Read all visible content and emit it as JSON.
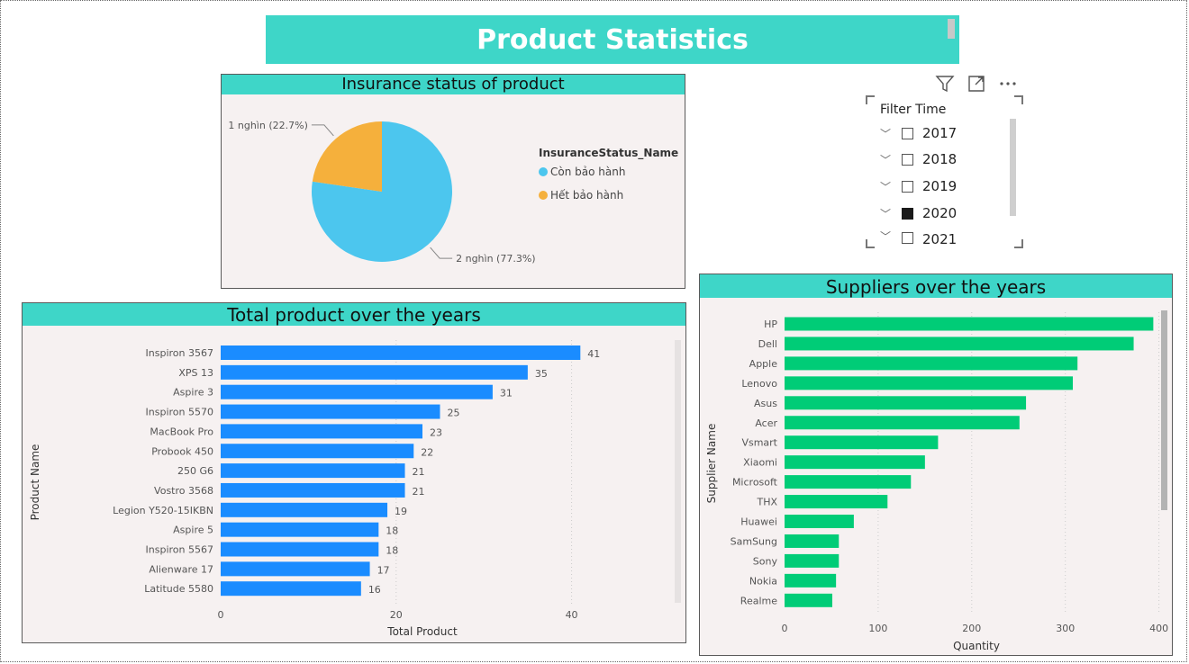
{
  "page": {
    "title": "Product Statistics"
  },
  "pie_panel": {
    "header": "Insurance status of product"
  },
  "slicer": {
    "title": "Filter Time",
    "items": [
      {
        "label": "2017",
        "checked": false
      },
      {
        "label": "2018",
        "checked": false
      },
      {
        "label": "2019",
        "checked": false
      },
      {
        "label": "2020",
        "checked": true
      },
      {
        "label": "2021",
        "checked": false
      }
    ]
  },
  "products_panel": {
    "header": "Total product over the years"
  },
  "suppliers_panel": {
    "header": "Suppliers over the years"
  },
  "colors": {
    "teal": "#3ed6c8",
    "pie_blue": "#4cc6ee",
    "pie_orange": "#f5b03c",
    "bar_blue": "#1a8cff",
    "bar_green": "#00cc77"
  },
  "chart_data": [
    {
      "type": "pie",
      "legend_title": "InsuranceStatus_Name",
      "legend_position": "right",
      "slices": [
        {
          "name": "Còn bảo hành",
          "percent": 77.3,
          "label": "2 nghìn (77.3%)",
          "color": "#4cc6ee"
        },
        {
          "name": "Hết bảo hành",
          "percent": 22.7,
          "label": "1 nghìn (22.7%)",
          "color": "#f5b03c"
        }
      ]
    },
    {
      "type": "bar",
      "orientation": "horizontal",
      "ylabel": "Product Name",
      "xlabel": "Total Product",
      "xlim": [
        0,
        46
      ],
      "xticks": [
        0,
        20,
        40
      ],
      "grid": true,
      "categories": [
        "Inspiron 3567",
        "XPS 13",
        "Aspire 3",
        "Inspiron 5570",
        "MacBook Pro",
        "Probook 450",
        "250 G6",
        "Vostro 3568",
        "Legion Y520-15IKBN",
        "Aspire 5",
        "Inspiron 5567",
        "Alienware 17",
        "Latitude 5580"
      ],
      "values": [
        41,
        35,
        31,
        25,
        23,
        22,
        21,
        21,
        19,
        18,
        18,
        17,
        16
      ]
    },
    {
      "type": "bar",
      "orientation": "horizontal",
      "ylabel": "Supplier Name",
      "xlabel": "Quantity",
      "xlim": [
        0,
        410
      ],
      "xticks": [
        0,
        100,
        200,
        300,
        400
      ],
      "grid": true,
      "categories": [
        "HP",
        "Dell",
        "Apple",
        "Lenovo",
        "Asus",
        "Acer",
        "Vsmart",
        "Xiaomi",
        "Microsoft",
        "THX",
        "Huawei",
        "SamSung",
        "Sony",
        "Nokia",
        "Realme"
      ],
      "values": [
        394,
        373,
        313,
        308,
        258,
        251,
        164,
        150,
        135,
        110,
        74,
        58,
        58,
        55,
        51
      ]
    }
  ]
}
